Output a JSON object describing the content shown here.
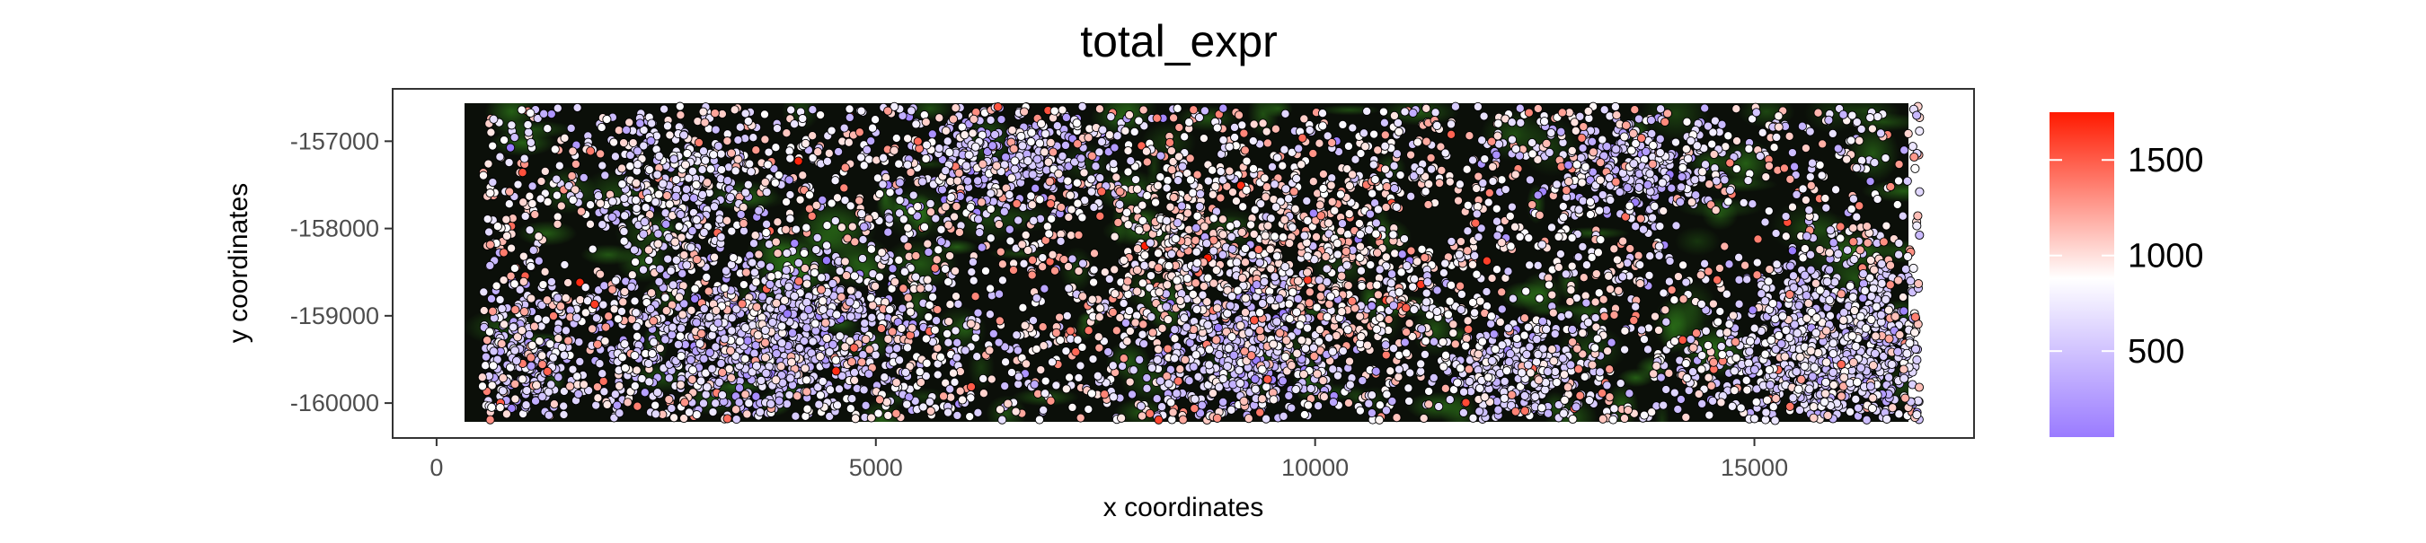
{
  "chart_data": {
    "type": "scatter",
    "title": "total_expr",
    "xlabel": "x coordinates",
    "ylabel": "y coordinates",
    "xlim": [
      -500,
      17500
    ],
    "ylim": [
      -160400,
      -156400
    ],
    "x_ticks": [
      0,
      5000,
      10000,
      15000
    ],
    "x_tick_labels": [
      "0",
      "5000",
      "10000",
      "15000"
    ],
    "y_ticks": [
      -157000,
      -158000,
      -159000,
      -160000
    ],
    "y_tick_labels": [
      "-157000",
      "-158000",
      "-159000",
      "-160000"
    ],
    "point_extent": {
      "x": [
        520,
        16880
      ],
      "y": [
        -160200,
        -156600
      ]
    },
    "grid": false,
    "background_image": "tissue-fluorescence",
    "colorbar": {
      "name": "",
      "placement": "right",
      "range": [
        50,
        1750
      ],
      "ticks": [
        500,
        1000,
        1500
      ],
      "tick_labels": [
        "500",
        "1000",
        "1500"
      ],
      "colors": {
        "low": "#9a7bff",
        "mid": "#ffffff",
        "high": "#ff1a00"
      },
      "midpoint": 880
    },
    "clusters": [
      {
        "x": 3900,
        "y": -159300,
        "sx": 900,
        "sy": 450,
        "n": 900,
        "mean": 520
      },
      {
        "x": 16000,
        "y": -159400,
        "sx": 750,
        "sy": 550,
        "n": 850,
        "mean": 600
      },
      {
        "x": 9200,
        "y": -159500,
        "sx": 550,
        "sy": 450,
        "n": 450,
        "mean": 480
      },
      {
        "x": 6500,
        "y": -157200,
        "sx": 600,
        "sy": 350,
        "n": 300,
        "mean": 470
      },
      {
        "x": 13600,
        "y": -157300,
        "sx": 500,
        "sy": 300,
        "n": 250,
        "mean": 520
      },
      {
        "x": 1000,
        "y": -159400,
        "sx": 350,
        "sy": 400,
        "n": 220,
        "mean": 560
      },
      {
        "x": 12300,
        "y": -159700,
        "sx": 400,
        "sy": 350,
        "n": 250,
        "mean": 600
      },
      {
        "x": 2800,
        "y": -157500,
        "sx": 500,
        "sy": 400,
        "n": 250,
        "mean": 650
      },
      {
        "x": 8500,
        "y": -158200,
        "sx": 600,
        "sy": 600,
        "n": 300,
        "mean": 1000
      },
      {
        "x": 10400,
        "y": -158300,
        "sx": 700,
        "sy": 700,
        "n": 350,
        "mean": 1000
      }
    ],
    "background_points": {
      "n": 3600,
      "mean": 860
    }
  }
}
